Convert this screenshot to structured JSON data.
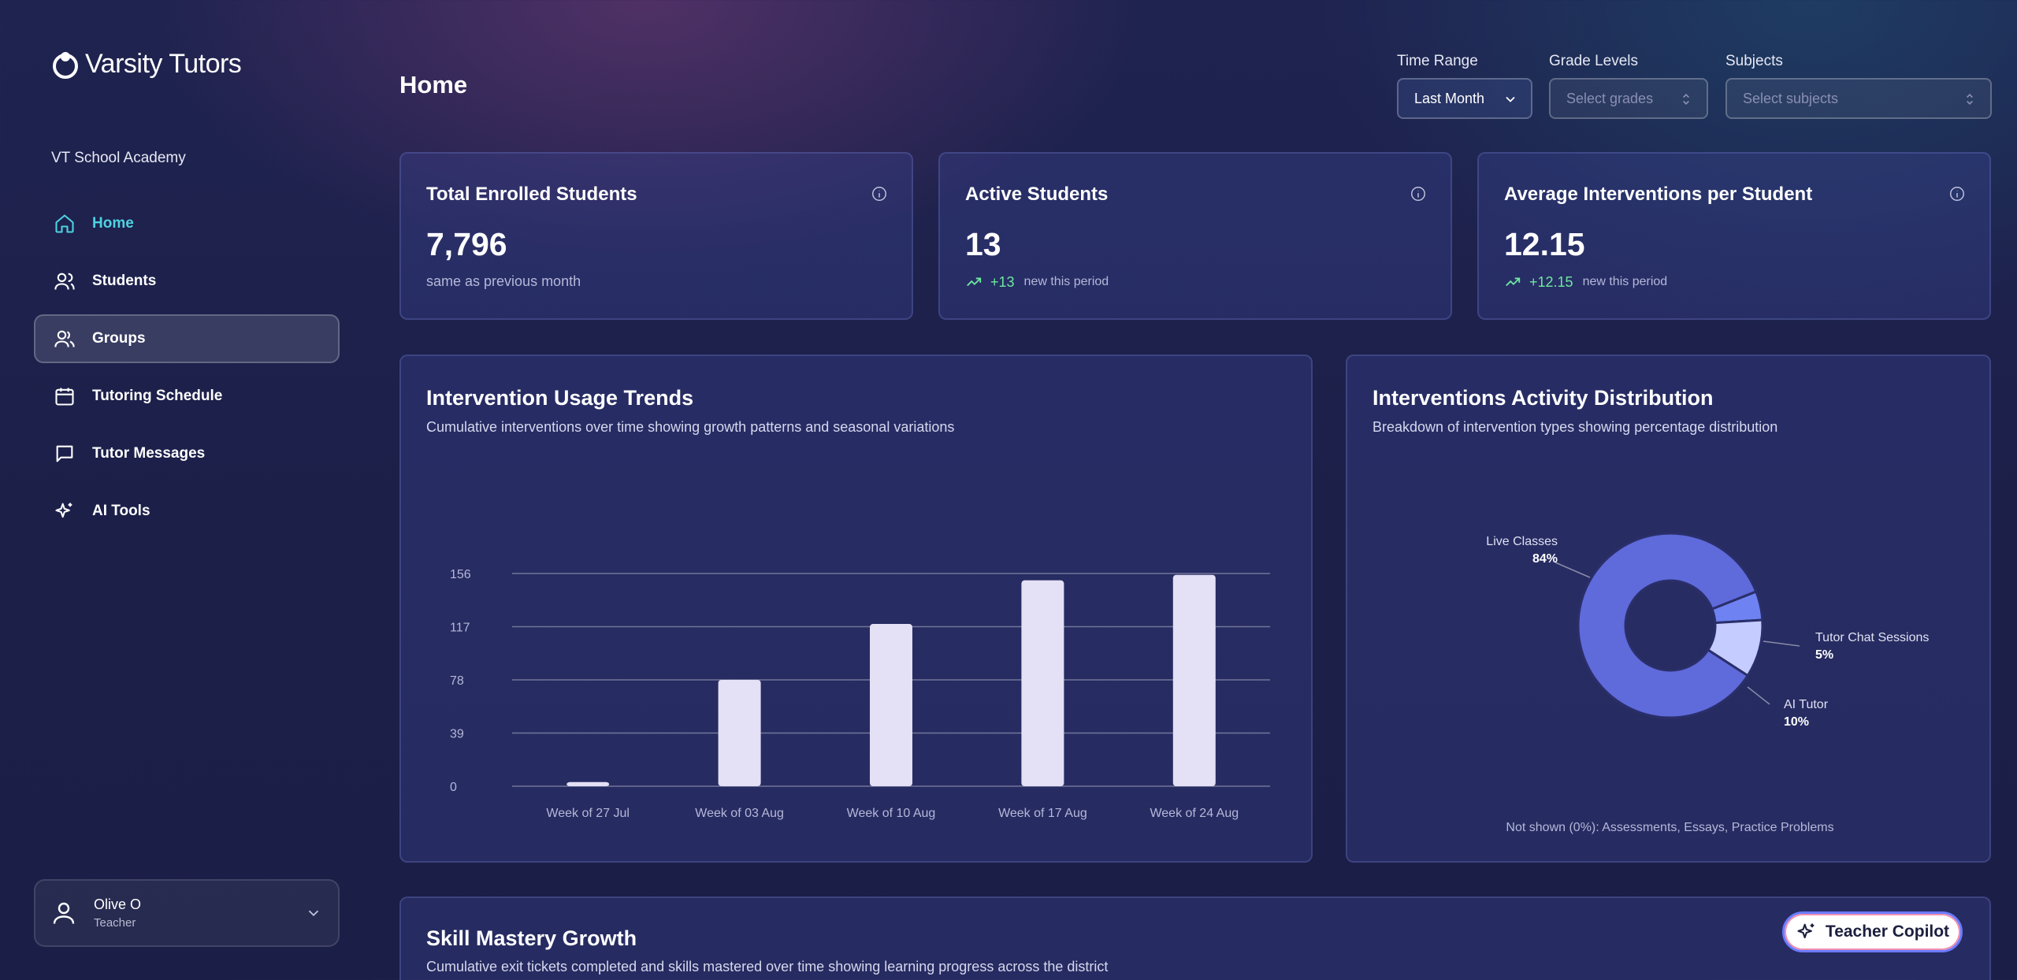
{
  "brand": {
    "name": "Varsity Tutors"
  },
  "sidebar": {
    "org": "VT School Academy",
    "items": [
      {
        "label": "Home",
        "icon": "home-icon"
      },
      {
        "label": "Students",
        "icon": "users-icon"
      },
      {
        "label": "Groups",
        "icon": "group-icon"
      },
      {
        "label": "Tutoring Schedule",
        "icon": "calendar-icon"
      },
      {
        "label": "Tutor Messages",
        "icon": "message-icon"
      },
      {
        "label": "AI Tools",
        "icon": "sparkle-icon"
      }
    ],
    "active_item": "Home",
    "selected_item": "Groups"
  },
  "user": {
    "name": "Olive O",
    "role": "Teacher"
  },
  "header": {
    "title": "Home",
    "filters": {
      "time_range": {
        "label": "Time Range",
        "value": "Last Month"
      },
      "grade_levels": {
        "label": "Grade Levels",
        "placeholder": "Select grades"
      },
      "subjects": {
        "label": "Subjects",
        "placeholder": "Select subjects"
      }
    }
  },
  "stats": {
    "enrolled": {
      "title": "Total Enrolled Students",
      "value": "7,796",
      "note": "same as previous month"
    },
    "active": {
      "title": "Active Students",
      "value": "13",
      "delta": "+13",
      "note": "new this period"
    },
    "avg": {
      "title": "Average Interventions per Student",
      "value": "12.15",
      "delta": "+12.15",
      "note": "new this period"
    }
  },
  "usage_panel": {
    "title": "Intervention Usage Trends",
    "subtitle": "Cumulative interventions over time showing growth patterns and seasonal variations"
  },
  "distribution_panel": {
    "title": "Interventions Activity Distribution",
    "subtitle": "Breakdown of intervention types showing percentage distribution",
    "footnote": "Not shown (0%): Assessments, Essays, Practice Problems"
  },
  "skill_panel": {
    "title": "Skill Mastery Growth",
    "subtitle": "Cumulative exit tickets completed and skills mastered over time showing learning progress across the district"
  },
  "copilot": {
    "label": "Teacher Copilot"
  },
  "colors": {
    "accent": "#4fd1e0",
    "positive": "#6ee7a0",
    "bar": "#e4e0f5",
    "pie_live": "#5f6adb",
    "pie_chat": "#6f82f2",
    "pie_ai": "#c5ccff"
  },
  "chart_data": [
    {
      "type": "bar",
      "categories": [
        "Week of 27 Jul",
        "Week of 03 Aug",
        "Week of 10 Aug",
        "Week of 17 Aug",
        "Week of 24 Aug"
      ],
      "values": [
        3,
        78,
        119,
        151,
        155
      ],
      "yticks": [
        0,
        39,
        78,
        117,
        156
      ],
      "ylim": [
        0,
        156
      ],
      "grid": true
    },
    {
      "type": "pie",
      "donut": true,
      "slices": [
        {
          "label": "Live Classes",
          "value": 84,
          "display": "84%"
        },
        {
          "label": "Tutor Chat Sessions",
          "value": 5,
          "display": "5%"
        },
        {
          "label": "AI Tutor",
          "value": 10,
          "display": "10%"
        }
      ]
    }
  ]
}
